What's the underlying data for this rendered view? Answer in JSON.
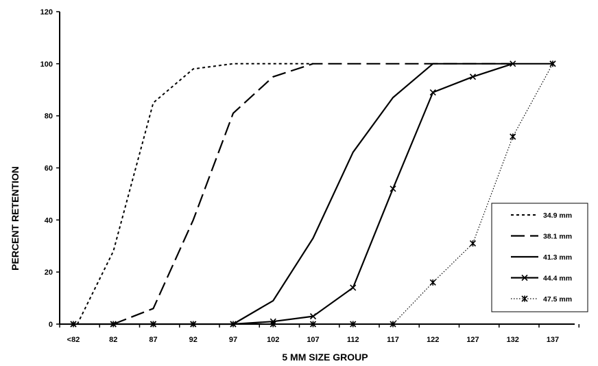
{
  "chart_data": {
    "type": "line",
    "title": "",
    "xlabel": "5 MM SIZE GROUP",
    "ylabel": "PERCENT RETENTION",
    "categories": [
      "<82",
      "82",
      "87",
      "92",
      "97",
      "102",
      "107",
      "112",
      "117",
      "122",
      "127",
      "132",
      "137"
    ],
    "ylim": [
      0,
      120
    ],
    "yticks": [
      0,
      20,
      40,
      60,
      80,
      100,
      120
    ],
    "grid": false,
    "legend_position": "lower-right",
    "series": [
      {
        "name": "34.9 mm",
        "style": "dotted",
        "marker": "none",
        "points": [
          [
            0.1,
            0
          ],
          [
            1,
            28
          ],
          [
            2,
            85
          ],
          [
            3,
            98
          ],
          [
            4,
            100
          ],
          [
            5,
            100
          ],
          [
            6,
            100
          ]
        ]
      },
      {
        "name": "38.1 mm",
        "style": "dashed",
        "marker": "none",
        "points": [
          [
            1,
            0
          ],
          [
            2,
            6
          ],
          [
            3,
            40
          ],
          [
            4,
            81
          ],
          [
            5,
            95
          ],
          [
            6,
            100
          ],
          [
            7,
            100
          ],
          [
            8,
            100
          ],
          [
            9,
            100
          ],
          [
            10,
            100
          ],
          [
            11,
            100
          ]
        ]
      },
      {
        "name": "41.3 mm",
        "style": "solid",
        "marker": "none",
        "points": [
          [
            4,
            0
          ],
          [
            5,
            9
          ],
          [
            6,
            33
          ],
          [
            7,
            66
          ],
          [
            8,
            87
          ],
          [
            9,
            100
          ],
          [
            10,
            100
          ],
          [
            11,
            100
          ]
        ]
      },
      {
        "name": "44.4 mm",
        "style": "solid",
        "marker": "x",
        "points": [
          [
            0,
            0
          ],
          [
            1,
            0
          ],
          [
            2,
            0
          ],
          [
            3,
            0
          ],
          [
            4,
            0
          ],
          [
            5,
            1
          ],
          [
            6,
            3
          ],
          [
            7,
            14
          ],
          [
            8,
            52
          ],
          [
            9,
            89
          ],
          [
            10,
            95
          ],
          [
            11,
            100
          ],
          [
            12,
            100
          ]
        ]
      },
      {
        "name": "47.5 mm",
        "style": "fine-dotted",
        "marker": "asterisk",
        "points": [
          [
            0,
            0
          ],
          [
            1,
            0
          ],
          [
            2,
            0
          ],
          [
            3,
            0
          ],
          [
            4,
            0
          ],
          [
            5,
            0
          ],
          [
            6,
            0
          ],
          [
            7,
            0
          ],
          [
            8,
            0
          ],
          [
            9,
            16
          ],
          [
            10,
            31
          ],
          [
            11,
            72
          ],
          [
            12,
            100
          ]
        ]
      }
    ]
  }
}
